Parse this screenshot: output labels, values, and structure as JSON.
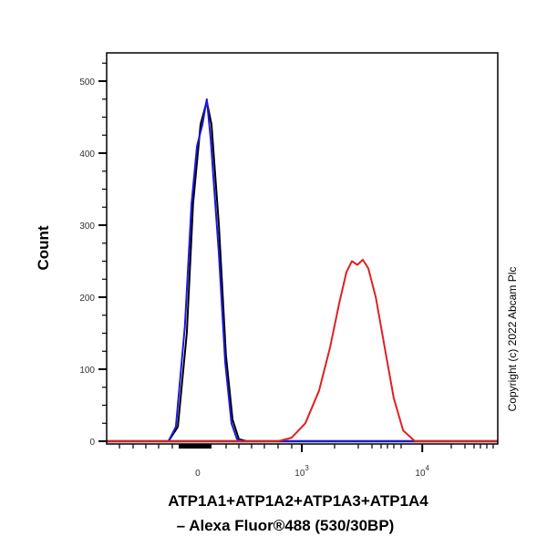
{
  "chart_data": {
    "type": "line",
    "title": "",
    "xlabel_line1": "ATP1A1+ATP1A2+ATP1A3+ATP1A4",
    "xlabel_line2": "– Alexa Fluor®488 (530/30BP)",
    "ylabel": "Count",
    "copyright": "Copyright (c) 2022 Abcam Plc",
    "xlim": [
      0,
      1000
    ],
    "ylim": [
      0,
      539
    ],
    "x_scale_note": "biexponential display channel",
    "yticks": [
      0,
      100,
      200,
      300,
      400,
      500
    ],
    "ytick_labels": [
      "0",
      "100",
      "200",
      "300",
      "400",
      "500"
    ],
    "xticks": [
      {
        "channel": 233,
        "label": "0",
        "sup": ""
      },
      {
        "channel": 499,
        "label": "10",
        "sup": "3"
      },
      {
        "channel": 807,
        "label": "10",
        "sup": "4"
      }
    ],
    "series": [
      {
        "name": "black",
        "color": "#000000",
        "x": [
          0,
          158,
          182,
          205,
          221,
          240,
          256,
          268,
          287,
          305,
          322,
          338,
          357,
          1000
        ],
        "y": [
          0,
          0,
          20,
          150,
          330,
          440,
          472,
          440,
          300,
          120,
          30,
          3,
          0,
          0
        ]
      },
      {
        "name": "blue",
        "color": "#1a1adf",
        "x": [
          0,
          158,
          177,
          200,
          217,
          231,
          245,
          256,
          266,
          275,
          287,
          303,
          319,
          333,
          350,
          1000
        ],
        "y": [
          0,
          0,
          20,
          160,
          330,
          410,
          440,
          475,
          420,
          350,
          260,
          110,
          25,
          3,
          0,
          0
        ]
      },
      {
        "name": "red",
        "color": "#e02020",
        "x": [
          0,
          438,
          473,
          508,
          543,
          571,
          594,
          613,
          627,
          641,
          655,
          669,
          688,
          711,
          734,
          758,
          788,
          1000
        ],
        "y": [
          0,
          0,
          5,
          25,
          70,
          130,
          190,
          235,
          250,
          245,
          252,
          240,
          200,
          130,
          60,
          15,
          0,
          0
        ]
      }
    ]
  }
}
